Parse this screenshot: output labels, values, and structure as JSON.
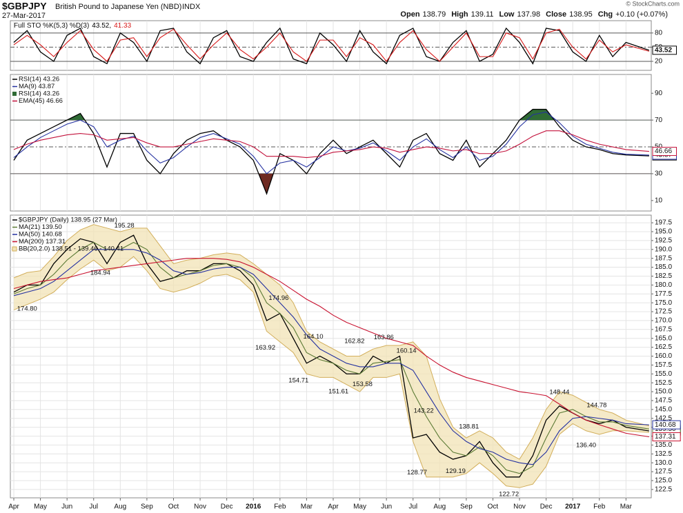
{
  "header": {
    "symbol": "$GBPJPY",
    "name": "British Pound to Japanese Yen (NBD)",
    "exchange": "INDX",
    "date": "27-Mar-2017",
    "quote": [
      {
        "label": "Open",
        "value": "138.79"
      },
      {
        "label": "High",
        "value": "139.11"
      },
      {
        "label": "Low",
        "value": "137.98"
      },
      {
        "label": "Close",
        "value": "138.95"
      },
      {
        "label": "Chg",
        "value": "+0.10 (+0.07%)"
      }
    ],
    "credit": "© StockCharts.com"
  },
  "chart_data": [
    {
      "type": "line",
      "title": "Full STO %K(5,3) %D(3)",
      "ylim": [
        1,
        106
      ],
      "yticks": [
        20,
        50,
        80
      ],
      "levels": [
        20,
        80
      ],
      "midline": 50,
      "grid": false,
      "x": [
        0,
        0.5,
        1,
        1.5,
        2,
        2.5,
        3,
        3.5,
        4,
        4.5,
        5,
        5.5,
        6,
        6.5,
        7,
        7.5,
        8,
        8.5,
        9,
        9.5,
        10,
        10.5,
        11,
        11.5,
        12,
        12.5,
        13,
        13.5,
        14,
        14.5,
        15,
        15.5,
        16,
        16.5,
        17,
        17.5,
        18,
        18.5,
        19,
        19.5,
        20,
        20.5,
        21,
        21.5,
        22,
        22.5,
        23,
        23.87
      ],
      "series": [
        {
          "name": "43.52,",
          "color": "#000000",
          "end_label": "43.52",
          "values": [
            60,
            85,
            40,
            20,
            75,
            90,
            30,
            15,
            80,
            60,
            20,
            85,
            90,
            40,
            15,
            70,
            85,
            30,
            20,
            60,
            90,
            25,
            15,
            80,
            55,
            20,
            85,
            40,
            15,
            75,
            90,
            30,
            20,
            60,
            85,
            20,
            35,
            90,
            60,
            15,
            90,
            85,
            40,
            20,
            75,
            30,
            60,
            43.52
          ]
        },
        {
          "name": "41.33",
          "color": "#d81818",
          "values": [
            55,
            75,
            55,
            30,
            60,
            85,
            45,
            20,
            65,
            70,
            30,
            70,
            88,
            55,
            25,
            55,
            80,
            45,
            25,
            50,
            80,
            40,
            20,
            65,
            65,
            30,
            70,
            55,
            20,
            60,
            85,
            45,
            20,
            50,
            80,
            30,
            30,
            80,
            70,
            25,
            80,
            88,
            50,
            25,
            65,
            40,
            55,
            41.33
          ]
        }
      ]
    },
    {
      "type": "line",
      "ylim": [
        2.2,
        104
      ],
      "yticks": [
        10,
        30,
        50,
        70,
        90
      ],
      "levels": [
        30,
        70
      ],
      "midline": 50,
      "grid": false,
      "fill_legend": "RSI(14) 43.26",
      "fill_colors": [
        "#2f6b35",
        "#6e2a22"
      ],
      "x": [
        0,
        0.5,
        1,
        1.5,
        2,
        2.5,
        3,
        3.5,
        4,
        4.5,
        5,
        5.5,
        6,
        6.5,
        7,
        7.5,
        8,
        8.5,
        9,
        9.5,
        10,
        10.5,
        11,
        11.5,
        12,
        12.5,
        13,
        13.5,
        14,
        14.5,
        15,
        15.5,
        16,
        16.5,
        17,
        17.5,
        18,
        18.5,
        19,
        19.5,
        20,
        20.5,
        21,
        21.5,
        22,
        22.5,
        23,
        23.87
      ],
      "series": [
        {
          "name": "RSI(14) 43.26",
          "color": "#000000",
          "end_label": "43.26",
          "values": [
            40,
            55,
            60,
            65,
            70,
            75,
            60,
            35,
            60,
            60,
            40,
            30,
            45,
            55,
            60,
            62,
            55,
            50,
            40,
            15,
            45,
            40,
            30,
            45,
            55,
            45,
            50,
            55,
            45,
            35,
            55,
            60,
            45,
            40,
            55,
            35,
            45,
            55,
            70,
            78,
            78,
            65,
            55,
            50,
            48,
            45,
            44,
            43.26
          ]
        },
        {
          "name": "MA(9) 43.87",
          "color": "#2431a0",
          "end_label": "43.87",
          "values": [
            42,
            50,
            57,
            62,
            67,
            70,
            65,
            50,
            55,
            58,
            47,
            38,
            42,
            50,
            57,
            60,
            56,
            52,
            43,
            30,
            38,
            40,
            35,
            42,
            50,
            47,
            49,
            53,
            47,
            40,
            50,
            56,
            48,
            42,
            50,
            40,
            43,
            52,
            65,
            74,
            76,
            68,
            58,
            52,
            49,
            46,
            44.5,
            43.87
          ]
        },
        {
          "name": "EMA(45) 46.66",
          "color": "#c2103a",
          "end_label": "46.66",
          "values": [
            48,
            52,
            55,
            57,
            59,
            60,
            59,
            55,
            56,
            57,
            53,
            50,
            50,
            52,
            54,
            56,
            55,
            54,
            50,
            43,
            43,
            43,
            42,
            43,
            46,
            47,
            48,
            50,
            49,
            46,
            48,
            50,
            49,
            47,
            48,
            45,
            45,
            47,
            52,
            58,
            62,
            62,
            59,
            55,
            52,
            50,
            48,
            46.66
          ]
        }
      ]
    },
    {
      "type": "line",
      "ylim": [
        120.15,
        199.65
      ],
      "xlim": [
        -0.13,
        23.95
      ],
      "grid": true,
      "yticks": [
        122.5,
        {
          "value": 125,
          "label": "125.0"
        },
        127.5,
        {
          "value": 130,
          "label": "130.0"
        },
        132.5,
        {
          "value": 135,
          "label": "135.0"
        },
        137.5,
        {
          "value": 140,
          "label": "140.0"
        },
        142.5,
        {
          "value": 145,
          "label": "145.0"
        },
        147.5,
        {
          "value": 150,
          "label": "150.0"
        },
        152.5,
        {
          "value": 155,
          "label": "155.0"
        },
        157.5,
        {
          "value": 160,
          "label": "160.0"
        },
        162.5,
        {
          "value": 165,
          "label": "165.0"
        },
        167.5,
        {
          "value": 170,
          "label": "170.0"
        },
        172.5,
        {
          "value": 175,
          "label": "175.0"
        },
        177.5,
        {
          "value": 180,
          "label": "180.0"
        },
        182.5,
        {
          "value": 185,
          "label": "185.0"
        },
        187.5,
        {
          "value": 190,
          "label": "190.0"
        },
        192.5,
        {
          "value": 195,
          "label": "195.0"
        },
        197.5
      ],
      "xticks": [
        {
          "value": 0,
          "label": "Apr"
        },
        {
          "value": 1,
          "label": "May"
        },
        {
          "value": 2,
          "label": "Jun"
        },
        {
          "value": 3,
          "label": "Jul"
        },
        {
          "value": 4,
          "label": "Aug"
        },
        {
          "value": 5,
          "label": "Sep"
        },
        {
          "value": 6,
          "label": "Oct"
        },
        {
          "value": 7,
          "label": "Nov"
        },
        {
          "value": 8,
          "label": "Dec"
        },
        {
          "value": 9,
          "label": "2016"
        },
        {
          "value": 10,
          "label": "Feb"
        },
        {
          "value": 11,
          "label": "Mar"
        },
        {
          "value": 12,
          "label": "Apr"
        },
        {
          "value": 13,
          "label": "May"
        },
        {
          "value": 14,
          "label": "Jun"
        },
        {
          "value": 15,
          "label": "Jul"
        },
        {
          "value": 16,
          "label": "Aug"
        },
        {
          "value": 17,
          "label": "Sep"
        },
        {
          "value": 18,
          "label": "Oct"
        },
        {
          "value": 19,
          "label": "Nov"
        },
        {
          "value": 20,
          "label": "Dec"
        },
        {
          "value": 21,
          "label": "2017"
        },
        {
          "value": 22,
          "label": "Feb"
        },
        {
          "value": 23,
          "label": "Mar"
        }
      ],
      "x": [
        0,
        0.5,
        1,
        1.5,
        2,
        2.5,
        3,
        3.5,
        4,
        4.5,
        5,
        5.5,
        6,
        6.5,
        7,
        7.5,
        8,
        8.5,
        9,
        9.5,
        10,
        10.5,
        11,
        11.5,
        12,
        12.5,
        13,
        13.5,
        14,
        14.5,
        15,
        15.5,
        16,
        16.5,
        17,
        17.5,
        18,
        18.5,
        19,
        19.5,
        20,
        20.5,
        21,
        21.5,
        22,
        22.5,
        23,
        23.87
      ],
      "series": [
        {
          "name": "$GBPJPY (Daily) 138.95 (27 Mar)",
          "color": "#000000",
          "end_label": "138.95",
          "values": [
            178,
            180,
            180,
            186,
            190,
            193,
            192,
            186,
            192,
            194,
            186,
            181,
            182,
            184,
            184,
            186,
            186,
            184,
            180,
            170,
            172,
            165,
            158,
            160,
            158,
            155,
            155,
            160,
            158,
            160,
            137,
            138,
            133,
            131,
            132,
            136,
            130,
            126,
            126,
            132,
            142,
            146,
            144,
            142,
            141,
            142,
            140,
            138.95
          ]
        },
        {
          "name": "MA(21) 139.50",
          "color": "#5b7a34",
          "end_label": "139.50",
          "values": [
            177.5,
            179,
            180,
            183,
            187,
            190,
            192,
            190,
            190,
            192,
            190,
            185,
            182,
            183,
            184,
            185.5,
            186,
            185,
            182,
            175,
            172,
            168,
            161,
            159,
            158,
            156,
            155,
            158,
            158.5,
            159,
            150,
            143,
            137,
            133,
            132,
            134.5,
            132,
            128,
            127,
            129,
            137,
            144,
            145,
            143,
            141.5,
            141.5,
            140.5,
            139.5
          ]
        },
        {
          "name": "MA(50) 140.68",
          "color": "#2431a0",
          "end_label": "140.68",
          "values": [
            177,
            178,
            179,
            181,
            184,
            187,
            190,
            190,
            190,
            190,
            189,
            187,
            184,
            183,
            183.5,
            184.5,
            185,
            185,
            183,
            179,
            175,
            171,
            166,
            162,
            160,
            158,
            157,
            157,
            158,
            158,
            156,
            150,
            144,
            139,
            136,
            134,
            133,
            131,
            130,
            129.5,
            133,
            139,
            142.5,
            143,
            142.5,
            142,
            141,
            140.68
          ]
        },
        {
          "name": "MA(200) 137.31",
          "color": "#c8102e",
          "end_label": "137.31",
          "values": [
            179,
            180,
            181,
            181.5,
            182,
            183,
            184,
            184.5,
            185,
            185.5,
            186,
            186.5,
            187,
            187.5,
            187.5,
            187.5,
            187.2,
            186.5,
            185,
            183,
            181,
            178.5,
            176,
            174,
            171.5,
            169.5,
            168,
            166.5,
            165,
            164,
            163,
            160,
            157.5,
            155.5,
            154,
            153,
            152,
            151,
            150,
            149.5,
            148.9,
            146.5,
            144,
            142,
            140.7,
            139.5,
            138.3,
            137.31
          ]
        },
        {
          "name": "BB(20,2.0) 138.51 - 139.46 - 140.41",
          "color": "#d2ae5a",
          "fill": "#f1e3b6",
          "upper": [
            182,
            183.5,
            184,
            188,
            192.5,
            195.5,
            197,
            196,
            195,
            196,
            196,
            191,
            186,
            187,
            187.5,
            188.5,
            189,
            188.5,
            186,
            183,
            180,
            175,
            167,
            164,
            162,
            160,
            160,
            162,
            163,
            163,
            164,
            160,
            148,
            140,
            137,
            139,
            137,
            133,
            131,
            137,
            145,
            150,
            149,
            147,
            145,
            144,
            142,
            140.41
          ],
          "lower": [
            173,
            174.5,
            176,
            178,
            181.5,
            184.5,
            187,
            184,
            185,
            188,
            184,
            179,
            178,
            179,
            180.5,
            182.5,
            183,
            181.5,
            178,
            167,
            164,
            161,
            155,
            154,
            154,
            152,
            150,
            154,
            154,
            155,
            136,
            126,
            126,
            126,
            127,
            130,
            127,
            123.5,
            123,
            124,
            129,
            138,
            141,
            139,
            138,
            139,
            139,
            138.51
          ]
        }
      ],
      "annotations": [
        {
          "x": 0.5,
          "y": 174.8,
          "label": "174.80",
          "side": "below"
        },
        {
          "x": 3.25,
          "y": 184.94,
          "label": "184.94",
          "side": "below"
        },
        {
          "x": 4.15,
          "y": 195.28,
          "label": "195.28",
          "side": "above"
        },
        {
          "x": 9.95,
          "y": 174.96,
          "label": "174.96",
          "side": "above"
        },
        {
          "x": 9.45,
          "y": 163.92,
          "label": "163.92",
          "side": "below"
        },
        {
          "x": 11.25,
          "y": 164.1,
          "label": "164.10",
          "side": "above"
        },
        {
          "x": 10.7,
          "y": 154.71,
          "label": "154.71",
          "side": "below"
        },
        {
          "x": 12.8,
          "y": 162.82,
          "label": "162.82",
          "side": "above"
        },
        {
          "x": 12.2,
          "y": 151.61,
          "label": "151.61",
          "side": "below"
        },
        {
          "x": 13.1,
          "y": 153.58,
          "label": "153.58",
          "side": "below"
        },
        {
          "x": 13.9,
          "y": 163.86,
          "label": "163.86",
          "side": "above"
        },
        {
          "x": 14.75,
          "y": 160.14,
          "label": "160.14",
          "side": "above"
        },
        {
          "x": 15.4,
          "y": 143.22,
          "label": "143.22",
          "side": "above"
        },
        {
          "x": 15.15,
          "y": 128.77,
          "label": "128.77",
          "side": "below"
        },
        {
          "x": 17.1,
          "y": 138.81,
          "label": "138.81",
          "side": "above"
        },
        {
          "x": 16.6,
          "y": 129.19,
          "label": "129.19",
          "side": "below"
        },
        {
          "x": 18.6,
          "y": 122.72,
          "label": "122.72",
          "side": "below"
        },
        {
          "x": 20.5,
          "y": 148.44,
          "label": "148.44",
          "side": "above"
        },
        {
          "x": 21.9,
          "y": 144.78,
          "label": "144.78",
          "side": "above"
        },
        {
          "x": 21.5,
          "y": 136.4,
          "label": "136.40",
          "side": "below"
        }
      ]
    }
  ]
}
